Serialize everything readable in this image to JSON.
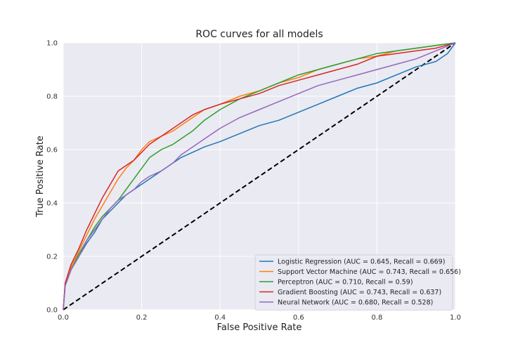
{
  "chart_data": {
    "type": "line",
    "title": "ROC curves for all models",
    "xlabel": "False Positive Rate",
    "ylabel": "True Positive Rate",
    "xlim": [
      0.0,
      1.0
    ],
    "ylim": [
      0.0,
      1.0
    ],
    "x_ticks": [
      "0.0",
      "0.2",
      "0.4",
      "0.6",
      "0.8",
      "1.0"
    ],
    "y_ticks": [
      "0.0",
      "0.2",
      "0.4",
      "0.6",
      "0.8",
      "1.0"
    ],
    "grid": true,
    "legend_position": "lower-right",
    "series": [
      {
        "name": "Logistic Regression (AUC = 0.645, Recall = 0.669)",
        "color": "#1f77b4",
        "x": [
          0.0,
          0.005,
          0.02,
          0.04,
          0.06,
          0.08,
          0.1,
          0.12,
          0.14,
          0.16,
          0.18,
          0.2,
          0.22,
          0.25,
          0.28,
          0.3,
          0.33,
          0.36,
          0.4,
          0.45,
          0.5,
          0.55,
          0.6,
          0.65,
          0.7,
          0.75,
          0.8,
          0.85,
          0.9,
          0.95,
          0.98,
          1.0
        ],
        "y": [
          0.0,
          0.1,
          0.15,
          0.2,
          0.25,
          0.29,
          0.34,
          0.37,
          0.4,
          0.43,
          0.45,
          0.47,
          0.49,
          0.52,
          0.55,
          0.57,
          0.59,
          0.61,
          0.63,
          0.66,
          0.69,
          0.71,
          0.74,
          0.77,
          0.8,
          0.83,
          0.85,
          0.88,
          0.91,
          0.93,
          0.96,
          1.0
        ]
      },
      {
        "name": "Support Vector Machine (AUC = 0.743, Recall = 0.656)",
        "color": "#ff7f0e",
        "x": [
          0.0,
          0.005,
          0.02,
          0.04,
          0.06,
          0.08,
          0.1,
          0.12,
          0.14,
          0.16,
          0.18,
          0.2,
          0.22,
          0.25,
          0.28,
          0.3,
          0.33,
          0.36,
          0.4,
          0.45,
          0.5,
          0.55,
          0.6,
          0.65,
          0.7,
          0.75,
          0.8,
          0.85,
          0.9,
          0.95,
          1.0
        ],
        "y": [
          0.0,
          0.1,
          0.16,
          0.22,
          0.28,
          0.34,
          0.39,
          0.44,
          0.49,
          0.53,
          0.56,
          0.6,
          0.63,
          0.65,
          0.67,
          0.69,
          0.72,
          0.75,
          0.77,
          0.8,
          0.82,
          0.85,
          0.87,
          0.9,
          0.92,
          0.94,
          0.95,
          0.97,
          0.98,
          0.99,
          1.0
        ]
      },
      {
        "name": "Perceptron (AUC = 0.710, Recall = 0.59)",
        "color": "#2ca02c",
        "x": [
          0.0,
          0.005,
          0.02,
          0.04,
          0.06,
          0.08,
          0.1,
          0.12,
          0.14,
          0.16,
          0.18,
          0.2,
          0.22,
          0.25,
          0.28,
          0.3,
          0.33,
          0.36,
          0.4,
          0.45,
          0.5,
          0.55,
          0.6,
          0.65,
          0.7,
          0.75,
          0.8,
          0.85,
          0.9,
          0.95,
          1.0
        ],
        "y": [
          0.0,
          0.09,
          0.15,
          0.21,
          0.26,
          0.31,
          0.35,
          0.38,
          0.41,
          0.45,
          0.49,
          0.53,
          0.57,
          0.6,
          0.62,
          0.64,
          0.67,
          0.71,
          0.75,
          0.79,
          0.82,
          0.85,
          0.88,
          0.9,
          0.92,
          0.94,
          0.96,
          0.97,
          0.98,
          0.99,
          1.0
        ]
      },
      {
        "name": " Gradient Boosting (AUC = 0.743, Recall = 0.637)",
        "color": "#d62728",
        "x": [
          0.0,
          0.005,
          0.02,
          0.04,
          0.06,
          0.08,
          0.1,
          0.12,
          0.14,
          0.16,
          0.18,
          0.2,
          0.22,
          0.25,
          0.28,
          0.3,
          0.33,
          0.36,
          0.4,
          0.45,
          0.5,
          0.55,
          0.6,
          0.65,
          0.7,
          0.75,
          0.8,
          0.85,
          0.9,
          0.95,
          1.0
        ],
        "y": [
          0.0,
          0.1,
          0.17,
          0.23,
          0.3,
          0.36,
          0.42,
          0.47,
          0.52,
          0.54,
          0.56,
          0.59,
          0.62,
          0.65,
          0.68,
          0.7,
          0.73,
          0.75,
          0.77,
          0.79,
          0.81,
          0.84,
          0.86,
          0.88,
          0.9,
          0.92,
          0.95,
          0.96,
          0.97,
          0.98,
          1.0
        ]
      },
      {
        "name": "Neural Network (AUC = 0.680, Recall = 0.528)",
        "color": "#9467bd",
        "x": [
          0.0,
          0.005,
          0.02,
          0.04,
          0.06,
          0.08,
          0.1,
          0.12,
          0.14,
          0.16,
          0.18,
          0.2,
          0.22,
          0.25,
          0.28,
          0.3,
          0.33,
          0.36,
          0.4,
          0.45,
          0.5,
          0.55,
          0.6,
          0.65,
          0.7,
          0.75,
          0.8,
          0.85,
          0.9,
          0.95,
          1.0
        ],
        "y": [
          0.0,
          0.09,
          0.15,
          0.2,
          0.26,
          0.3,
          0.34,
          0.38,
          0.41,
          0.43,
          0.45,
          0.48,
          0.5,
          0.52,
          0.55,
          0.58,
          0.61,
          0.64,
          0.68,
          0.72,
          0.75,
          0.78,
          0.81,
          0.84,
          0.86,
          0.88,
          0.9,
          0.92,
          0.94,
          0.97,
          1.0
        ]
      }
    ],
    "reference_line": {
      "x": [
        0.0,
        1.0
      ],
      "y": [
        0.0,
        1.0
      ],
      "color": "#000000",
      "style": "dashed"
    }
  }
}
